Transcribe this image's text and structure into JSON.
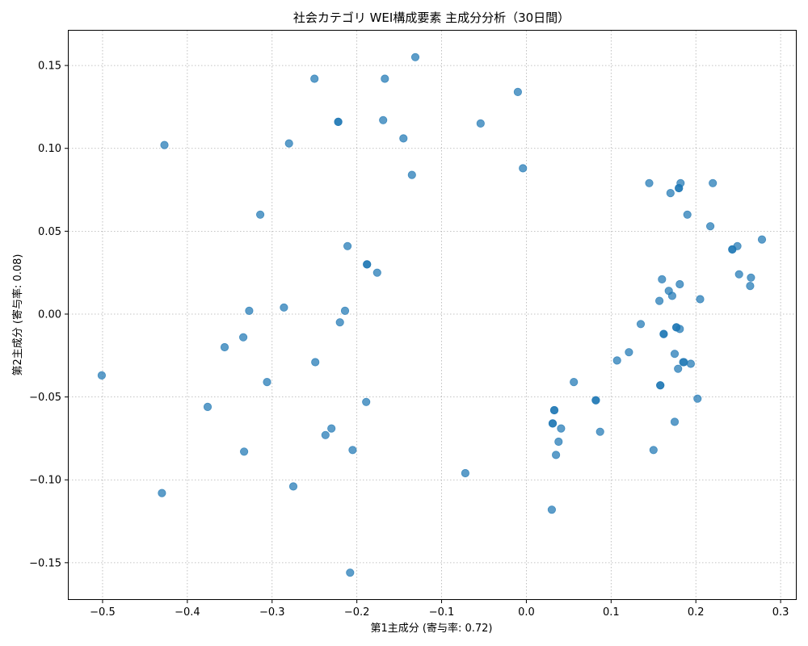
{
  "chart_data": {
    "type": "scatter",
    "title": "社会カテゴリ WEI構成要素 主成分分析（30日間）",
    "xlabel": "第1主成分 (寄与率: 0.72)",
    "ylabel": "第2主成分 (寄与率: 0.08)",
    "xlim": [
      -0.54,
      0.318
    ],
    "ylim": [
      -0.172,
      0.171
    ],
    "xticks": [
      -0.5,
      -0.4,
      -0.3,
      -0.2,
      -0.1,
      0.0,
      0.1,
      0.2,
      0.3
    ],
    "xtick_labels": [
      "−0.5",
      "−0.4",
      "−0.3",
      "−0.2",
      "−0.1",
      "0.0",
      "0.1",
      "0.2",
      "0.3"
    ],
    "yticks": [
      -0.15,
      -0.1,
      -0.05,
      0.0,
      0.05,
      0.1,
      0.15
    ],
    "ytick_labels": [
      "−0.15",
      "−0.10",
      "−0.05",
      "0.00",
      "0.05",
      "0.10",
      "0.15"
    ],
    "grid": true,
    "marker_color": "#1f77b4",
    "points": [
      [
        -0.131,
        0.155
      ],
      [
        -0.25,
        0.142
      ],
      [
        -0.167,
        0.142
      ],
      [
        -0.01,
        0.134
      ],
      [
        -0.222,
        0.116
      ],
      [
        -0.222,
        0.116
      ],
      [
        -0.169,
        0.117
      ],
      [
        -0.054,
        0.115
      ],
      [
        -0.145,
        0.106
      ],
      [
        -0.427,
        0.102
      ],
      [
        -0.28,
        0.103
      ],
      [
        -0.004,
        0.088
      ],
      [
        -0.135,
        0.084
      ],
      [
        -0.314,
        0.06
      ],
      [
        -0.211,
        0.041
      ],
      [
        -0.188,
        0.03
      ],
      [
        -0.188,
        0.03
      ],
      [
        -0.176,
        0.025
      ],
      [
        -0.327,
        0.002
      ],
      [
        -0.286,
        0.004
      ],
      [
        -0.214,
        0.002
      ],
      [
        -0.22,
        -0.005
      ],
      [
        -0.334,
        -0.014
      ],
      [
        -0.356,
        -0.02
      ],
      [
        -0.249,
        -0.029
      ],
      [
        -0.501,
        -0.037
      ],
      [
        -0.306,
        -0.041
      ],
      [
        -0.189,
        -0.053
      ],
      [
        -0.376,
        -0.056
      ],
      [
        -0.23,
        -0.069
      ],
      [
        -0.237,
        -0.073
      ],
      [
        -0.333,
        -0.083
      ],
      [
        -0.205,
        -0.082
      ],
      [
        -0.072,
        -0.096
      ],
      [
        -0.275,
        -0.104
      ],
      [
        -0.43,
        -0.108
      ],
      [
        -0.208,
        -0.156
      ],
      [
        0.03,
        -0.118
      ],
      [
        0.056,
        -0.041
      ],
      [
        0.033,
        -0.058
      ],
      [
        0.033,
        -0.058
      ],
      [
        0.031,
        -0.066
      ],
      [
        0.031,
        -0.066
      ],
      [
        0.041,
        -0.069
      ],
      [
        0.038,
        -0.077
      ],
      [
        0.035,
        -0.085
      ],
      [
        0.082,
        -0.052
      ],
      [
        0.082,
        -0.052
      ],
      [
        0.087,
        -0.071
      ],
      [
        0.107,
        -0.028
      ],
      [
        0.121,
        -0.023
      ],
      [
        0.135,
        -0.006
      ],
      [
        0.145,
        0.079
      ],
      [
        0.15,
        -0.082
      ],
      [
        0.157,
        0.008
      ],
      [
        0.158,
        -0.043
      ],
      [
        0.158,
        -0.043
      ],
      [
        0.16,
        0.021
      ],
      [
        0.162,
        -0.012
      ],
      [
        0.162,
        -0.012
      ],
      [
        0.168,
        0.014
      ],
      [
        0.17,
        0.073
      ],
      [
        0.172,
        0.011
      ],
      [
        0.175,
        -0.024
      ],
      [
        0.175,
        -0.065
      ],
      [
        0.177,
        -0.008
      ],
      [
        0.177,
        -0.008
      ],
      [
        0.179,
        -0.033
      ],
      [
        0.18,
        0.076
      ],
      [
        0.18,
        0.076
      ],
      [
        0.181,
        0.018
      ],
      [
        0.181,
        -0.009
      ],
      [
        0.182,
        0.079
      ],
      [
        0.185,
        -0.029
      ],
      [
        0.186,
        -0.029
      ],
      [
        0.19,
        0.06
      ],
      [
        0.194,
        -0.03
      ],
      [
        0.202,
        -0.051
      ],
      [
        0.205,
        0.009
      ],
      [
        0.217,
        0.053
      ],
      [
        0.22,
        0.079
      ],
      [
        0.243,
        0.039
      ],
      [
        0.243,
        0.039
      ],
      [
        0.249,
        0.041
      ],
      [
        0.251,
        0.024
      ],
      [
        0.264,
        0.017
      ],
      [
        0.265,
        0.022
      ],
      [
        0.278,
        0.045
      ]
    ]
  }
}
